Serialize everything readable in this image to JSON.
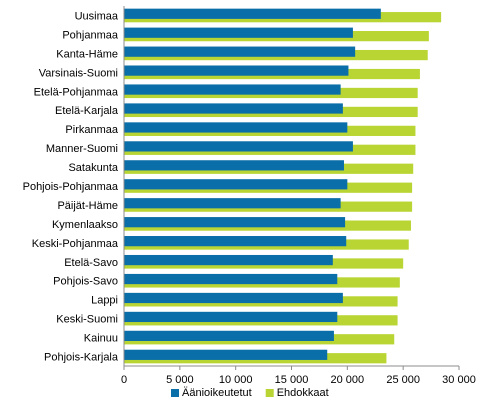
{
  "chart_data": {
    "type": "bar",
    "orientation": "horizontal",
    "categories": [
      "Uusimaa",
      "Pohjanmaa",
      "Kanta-Häme",
      "Varsinais-Suomi",
      "Etelä-Pohjanmaa",
      "Etelä-Karjala",
      "Pirkanmaa",
      "Manner-Suomi",
      "Satakunta",
      "Pohjois-Pohjanmaa",
      "Päijät-Häme",
      "Kymenlaakso",
      "Keski-Pohjanmaa",
      "Etelä-Savo",
      "Pohjois-Savo",
      "Lappi",
      "Keski-Suomi",
      "Kainuu",
      "Pohjois-Karjala"
    ],
    "series": [
      {
        "name": "Äänioikeutetut",
        "color": "#0a6ea8",
        "values": [
          23000,
          20500,
          20700,
          20100,
          19400,
          19600,
          20000,
          20500,
          19700,
          20000,
          19400,
          19800,
          19900,
          18700,
          19100,
          19600,
          19100,
          18800,
          18200
        ]
      },
      {
        "name": "Ehdokkaat",
        "color": "#b9d533",
        "values": [
          28400,
          27300,
          27200,
          26500,
          26300,
          26300,
          26100,
          26100,
          25900,
          25800,
          25800,
          25700,
          25500,
          25000,
          24700,
          24500,
          24500,
          24200,
          23500
        ]
      }
    ],
    "xlim": [
      0,
      30000
    ],
    "xticks": [
      0,
      5000,
      10000,
      15000,
      20000,
      25000,
      30000
    ],
    "xtick_labels": [
      "0",
      "5 000",
      "10 000",
      "15 000",
      "20 000",
      "25 000",
      "30 000"
    ],
    "grid": false,
    "legend_position": "bottom",
    "title": "",
    "xlabel": "",
    "ylabel": ""
  }
}
